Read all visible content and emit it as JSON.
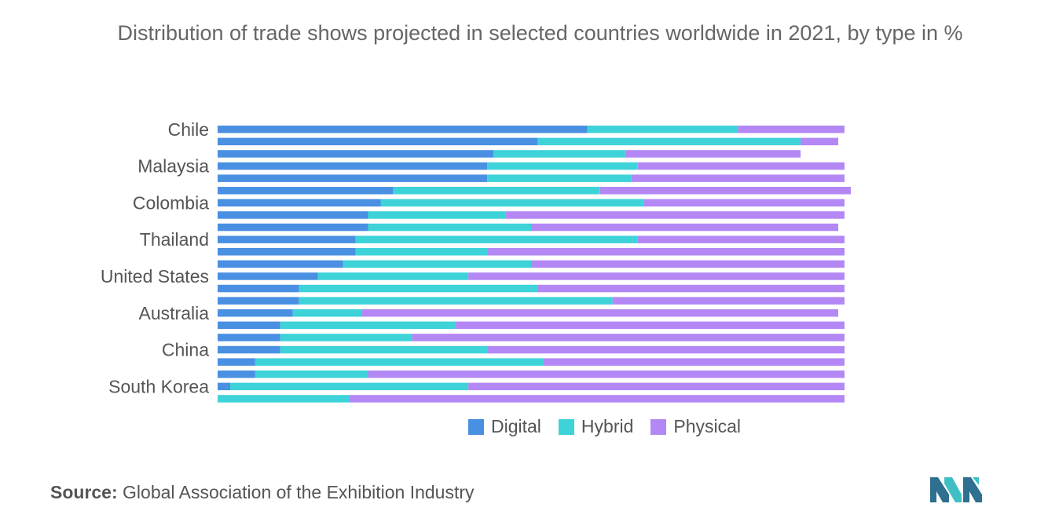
{
  "chart_data": {
    "type": "bar",
    "orientation": "horizontal",
    "stacked": true,
    "title": "Distribution of trade shows projected in selected countries worldwide in 2021, by type in %",
    "xlim": [
      0,
      100
    ],
    "grid": false,
    "legend_position": "bottom",
    "category_labels": [
      "Chile",
      "Malaysia",
      "Colombia",
      "Thailand",
      "United States",
      "Australia",
      "China",
      "South Korea"
    ],
    "row_count": 23,
    "label_rows": [
      0,
      3,
      6,
      9,
      12,
      15,
      18,
      21
    ],
    "series": [
      {
        "name": "Digital",
        "color": "#4a90e2",
        "values": [
          59,
          51,
          44,
          43,
          43,
          28,
          26,
          24,
          24,
          22,
          22,
          20,
          16,
          13,
          13,
          12,
          10,
          10,
          10,
          6,
          6,
          2,
          0
        ]
      },
      {
        "name": "Hybrid",
        "color": "#3dd3d8",
        "values": [
          24,
          42,
          21,
          24,
          23,
          33,
          42,
          22,
          26,
          45,
          21,
          30,
          24,
          38,
          50,
          11,
          28,
          21,
          33,
          46,
          18,
          38,
          21
        ]
      },
      {
        "name": "Physical",
        "color": "#b388f5",
        "values": [
          17,
          6,
          28,
          33,
          34,
          40,
          32,
          54,
          49,
          33,
          57,
          50,
          60,
          49,
          37,
          76,
          62,
          69,
          57,
          48,
          76,
          60,
          79
        ]
      }
    ]
  },
  "legend": {
    "digital": "Digital",
    "hybrid": "Hybrid",
    "physical": "Physical"
  },
  "source": {
    "label": "Source:",
    "text": "Global Association of the Exhibition Industry"
  }
}
